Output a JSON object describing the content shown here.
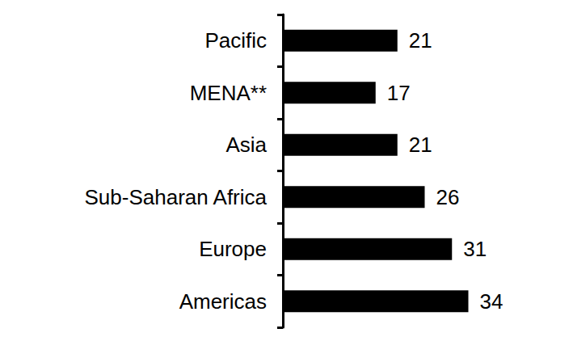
{
  "chart_data": {
    "type": "bar",
    "orientation": "horizontal",
    "categories": [
      "Pacific",
      "MENA**",
      "Asia",
      "Sub-Saharan Africa",
      "Europe",
      "Americas"
    ],
    "values": [
      21,
      17,
      21,
      26,
      31,
      34
    ],
    "color": "#000000",
    "xlim": [
      0,
      40
    ],
    "grid": false,
    "data_labels": true,
    "tick_labels": "y"
  }
}
